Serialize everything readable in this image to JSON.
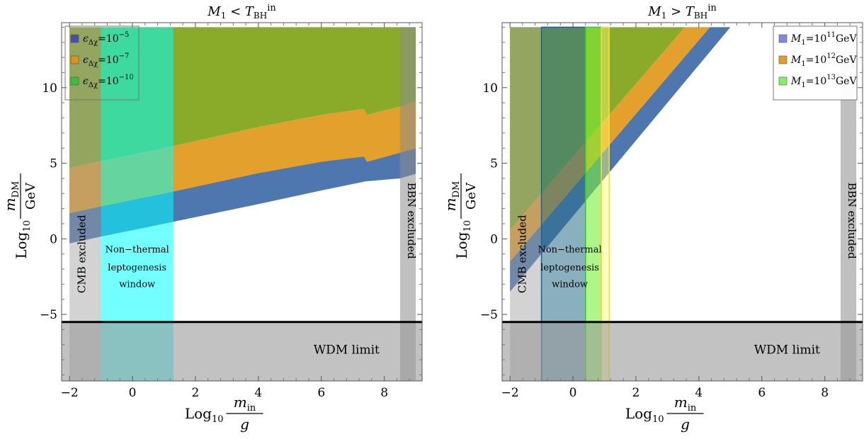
{
  "chart_data": [
    {
      "type": "area",
      "title": {
        "main": "M",
        "sub": "1",
        "rel": " < ",
        "var": "T",
        "var_sub": "BH",
        "sup": "in"
      },
      "xlabel": {
        "pre": "Log",
        "sub": "10",
        "frac_num": "m",
        "frac_num_sub": "in",
        "frac_den": "g"
      },
      "ylabel": {
        "pre": "Log",
        "sub": "10",
        "frac_num": "m",
        "frac_num_sub": "DM",
        "frac_den": "GeV"
      },
      "xlim": [
        -2.25,
        9.2
      ],
      "ylim": [
        -9.4,
        14.3
      ],
      "x_ticks": [
        -2,
        0,
        2,
        4,
        6,
        8
      ],
      "x_tick_labels": [
        "−2",
        "0",
        "2",
        "4",
        "6",
        "8"
      ],
      "y_ticks": [
        -5,
        0,
        5,
        10
      ],
      "y_tick_labels": [
        "−5",
        "0",
        "5",
        "10"
      ],
      "legend": {
        "placement": "top-left",
        "entries": [
          {
            "label": "ϵ",
            "sub": "Δχ",
            "eq": "=10",
            "sup": "−5",
            "color": "#4a4ea8"
          },
          {
            "label": "ϵ",
            "sub": "Δχ",
            "eq": "=10",
            "sup": "−7",
            "color": "#e0901e"
          },
          {
            "label": "ϵ",
            "sub": "Δχ",
            "eq": "=10",
            "sup": "−10",
            "color": "#3dbd3d"
          }
        ]
      },
      "series": [
        {
          "color": "#4e77b0",
          "fill": "band",
          "lower": [
            [
              -2,
              -0.3
            ],
            [
              -1,
              0.15
            ],
            [
              1,
              1.0
            ],
            [
              4,
              2.3
            ],
            [
              6,
              3.2
            ],
            [
              7.4,
              3.8
            ],
            [
              8.5,
              4.0
            ],
            [
              9,
              4.3
            ]
          ],
          "upper": [
            [
              -2,
              1.7
            ],
            [
              -1,
              2.15
            ],
            [
              1,
              3.0
            ],
            [
              4,
              4.35
            ],
            [
              6,
              5.1
            ],
            [
              7.35,
              5.45
            ],
            [
              7.45,
              5.1
            ],
            [
              8.5,
              5.7
            ],
            [
              9,
              6.0
            ]
          ]
        },
        {
          "color": "#e3a02c",
          "fill": "band",
          "lower": [
            [
              -2,
              1.7
            ],
            [
              -1,
              2.15
            ],
            [
              1,
              3.0
            ],
            [
              4,
              4.35
            ],
            [
              6,
              5.1
            ],
            [
              7.35,
              5.45
            ],
            [
              7.45,
              5.1
            ],
            [
              8.5,
              5.7
            ],
            [
              9,
              6.0
            ]
          ],
          "upper": [
            [
              -2,
              4.7
            ],
            [
              -1,
              5.15
            ],
            [
              1,
              6.0
            ],
            [
              4,
              7.4
            ],
            [
              6,
              8.2
            ],
            [
              7.35,
              8.6
            ],
            [
              7.45,
              8.2
            ],
            [
              8.5,
              8.75
            ],
            [
              9,
              9.1
            ]
          ]
        },
        {
          "color": "#8aab2a",
          "fill": "to_top",
          "lower": [
            [
              -2,
              4.7
            ],
            [
              -1,
              5.15
            ],
            [
              1,
              6.0
            ],
            [
              4,
              7.4
            ],
            [
              6,
              8.2
            ],
            [
              7.35,
              8.6
            ],
            [
              7.45,
              8.2
            ],
            [
              8.5,
              8.75
            ],
            [
              9,
              9.1
            ]
          ],
          "top": 14.0
        }
      ],
      "vertical_bands": [
        {
          "x0": -2.0,
          "x1": -1.0,
          "y0": -9.4,
          "y1": 14.0,
          "color": "#9e9e9e",
          "opacity": 0.45
        },
        {
          "x0": -1.0,
          "x1": 1.3,
          "y0": -9.4,
          "y1": 14.0,
          "color": "#00ffff",
          "opacity": 0.55
        },
        {
          "x0": 8.5,
          "x1": 9.0,
          "y0": -9.4,
          "y1": 14.0,
          "color": "#8c8c8c",
          "opacity": 0.55
        }
      ],
      "horizontal_band": {
        "y0": -9.4,
        "y1": -5.5,
        "color": "#9a9a9a",
        "opacity": 0.6
      },
      "hline": -5.5,
      "annotations": [
        {
          "id": "cmb",
          "text": "CMB excluded",
          "x": -1.5,
          "y": -1.0,
          "rotate": -90
        },
        {
          "id": "window1",
          "text": "Non−thermal",
          "x": 0.15,
          "y": -0.9
        },
        {
          "id": "window2",
          "text": "leptogenesis",
          "x": 0.15,
          "y": -2.1
        },
        {
          "id": "window3",
          "text": "window",
          "x": 0.15,
          "y": -3.2
        },
        {
          "id": "wdm",
          "text": "WDM limit",
          "x": 6.8,
          "y": -7.6
        },
        {
          "id": "bbn",
          "text": "BBN excluded",
          "x": 8.75,
          "y": 1.2,
          "rotate": 90
        }
      ]
    },
    {
      "type": "area",
      "title": {
        "main": "M",
        "sub": "1",
        "rel": " > ",
        "var": "T",
        "var_sub": "BH",
        "sup": "in"
      },
      "xlabel": {
        "pre": "Log",
        "sub": "10",
        "frac_num": "m",
        "frac_num_sub": "in",
        "frac_den": "g"
      },
      "ylabel": {
        "pre": "Log",
        "sub": "10",
        "frac_num": "m",
        "frac_num_sub": "DM",
        "frac_den": "GeV"
      },
      "xlim": [
        -2.25,
        9.2
      ],
      "ylim": [
        -9.4,
        14.3
      ],
      "x_ticks": [
        -2,
        0,
        2,
        4,
        6,
        8
      ],
      "x_tick_labels": [
        "−2",
        "0",
        "2",
        "4",
        "6",
        "8"
      ],
      "y_ticks": [
        -5,
        0,
        5,
        10
      ],
      "y_tick_labels": [
        "−5",
        "0",
        "5",
        "10"
      ],
      "legend": {
        "placement": "top-right",
        "entries": [
          {
            "label": "M",
            "sub": "1",
            "eq": "=10",
            "sup": "11",
            "post": "GeV",
            "color": "#8088e6"
          },
          {
            "label": "M",
            "sub": "1",
            "eq": "=10",
            "sup": "12",
            "post": "GeV",
            "color": "#e6982e"
          },
          {
            "label": "M",
            "sub": "1",
            "eq": "=10",
            "sup": "13",
            "post": "GeV",
            "color": "#88ee68"
          }
        ]
      },
      "series": [
        {
          "color": "#4e77b0",
          "fill": "polygon",
          "points": [
            [
              -2,
              -3.5
            ],
            [
              -2,
              -1.5
            ],
            [
              4.35,
              14.0
            ],
            [
              5.0,
              14.0
            ]
          ]
        },
        {
          "color": "#e3a02c",
          "fill": "polygon",
          "points": [
            [
              -2,
              -1.5
            ],
            [
              -2,
              0.6
            ],
            [
              3.55,
              14.0
            ],
            [
              4.35,
              14.0
            ]
          ]
        },
        {
          "color": "#8aab2a",
          "fill": "polygon",
          "points": [
            [
              -2,
              0.6
            ],
            [
              -2,
              14.0
            ],
            [
              3.55,
              14.0
            ]
          ]
        }
      ],
      "vertical_bands": [
        {
          "x0": -2.0,
          "x1": -1.0,
          "y0": -9.4,
          "y1": 14.0,
          "color": "#9e9e9e",
          "opacity": 0.45
        },
        {
          "x0": -1.0,
          "x1": 0.4,
          "y0": -9.4,
          "y1": 14.0,
          "color": "#2a6f8c",
          "opacity": 0.55,
          "stroke": "#2d5d80"
        },
        {
          "x0": 0.4,
          "x1": 0.9,
          "y0": -9.4,
          "y1": 14.0,
          "color": "#7aee3a",
          "opacity": 0.6,
          "stroke": "#3cc43c"
        },
        {
          "x0": 0.9,
          "x1": 1.15,
          "y0": -9.4,
          "y1": 14.0,
          "color": "#ffff66",
          "opacity": 0.45,
          "stroke": "#f0e04a"
        },
        {
          "x0": 8.5,
          "x1": 9.0,
          "y0": -9.4,
          "y1": 14.0,
          "color": "#8c8c8c",
          "opacity": 0.55
        }
      ],
      "horizontal_band": {
        "y0": -9.4,
        "y1": -5.5,
        "color": "#9a9a9a",
        "opacity": 0.6
      },
      "hline": -5.5,
      "annotations": [
        {
          "id": "cmb",
          "text": "CMB excluded",
          "x": -1.5,
          "y": -1.0,
          "rotate": -90
        },
        {
          "id": "window1",
          "text": "Non−thermal",
          "x": -0.1,
          "y": -0.9
        },
        {
          "id": "window2",
          "text": "leptogenesis",
          "x": -0.1,
          "y": -2.1
        },
        {
          "id": "window3",
          "text": "window",
          "x": -0.1,
          "y": -3.2
        },
        {
          "id": "wdm",
          "text": "WDM limit",
          "x": 6.8,
          "y": -7.6
        },
        {
          "id": "bbn",
          "text": "BBN excluded",
          "x": 8.75,
          "y": 1.2,
          "rotate": 90
        }
      ]
    }
  ]
}
